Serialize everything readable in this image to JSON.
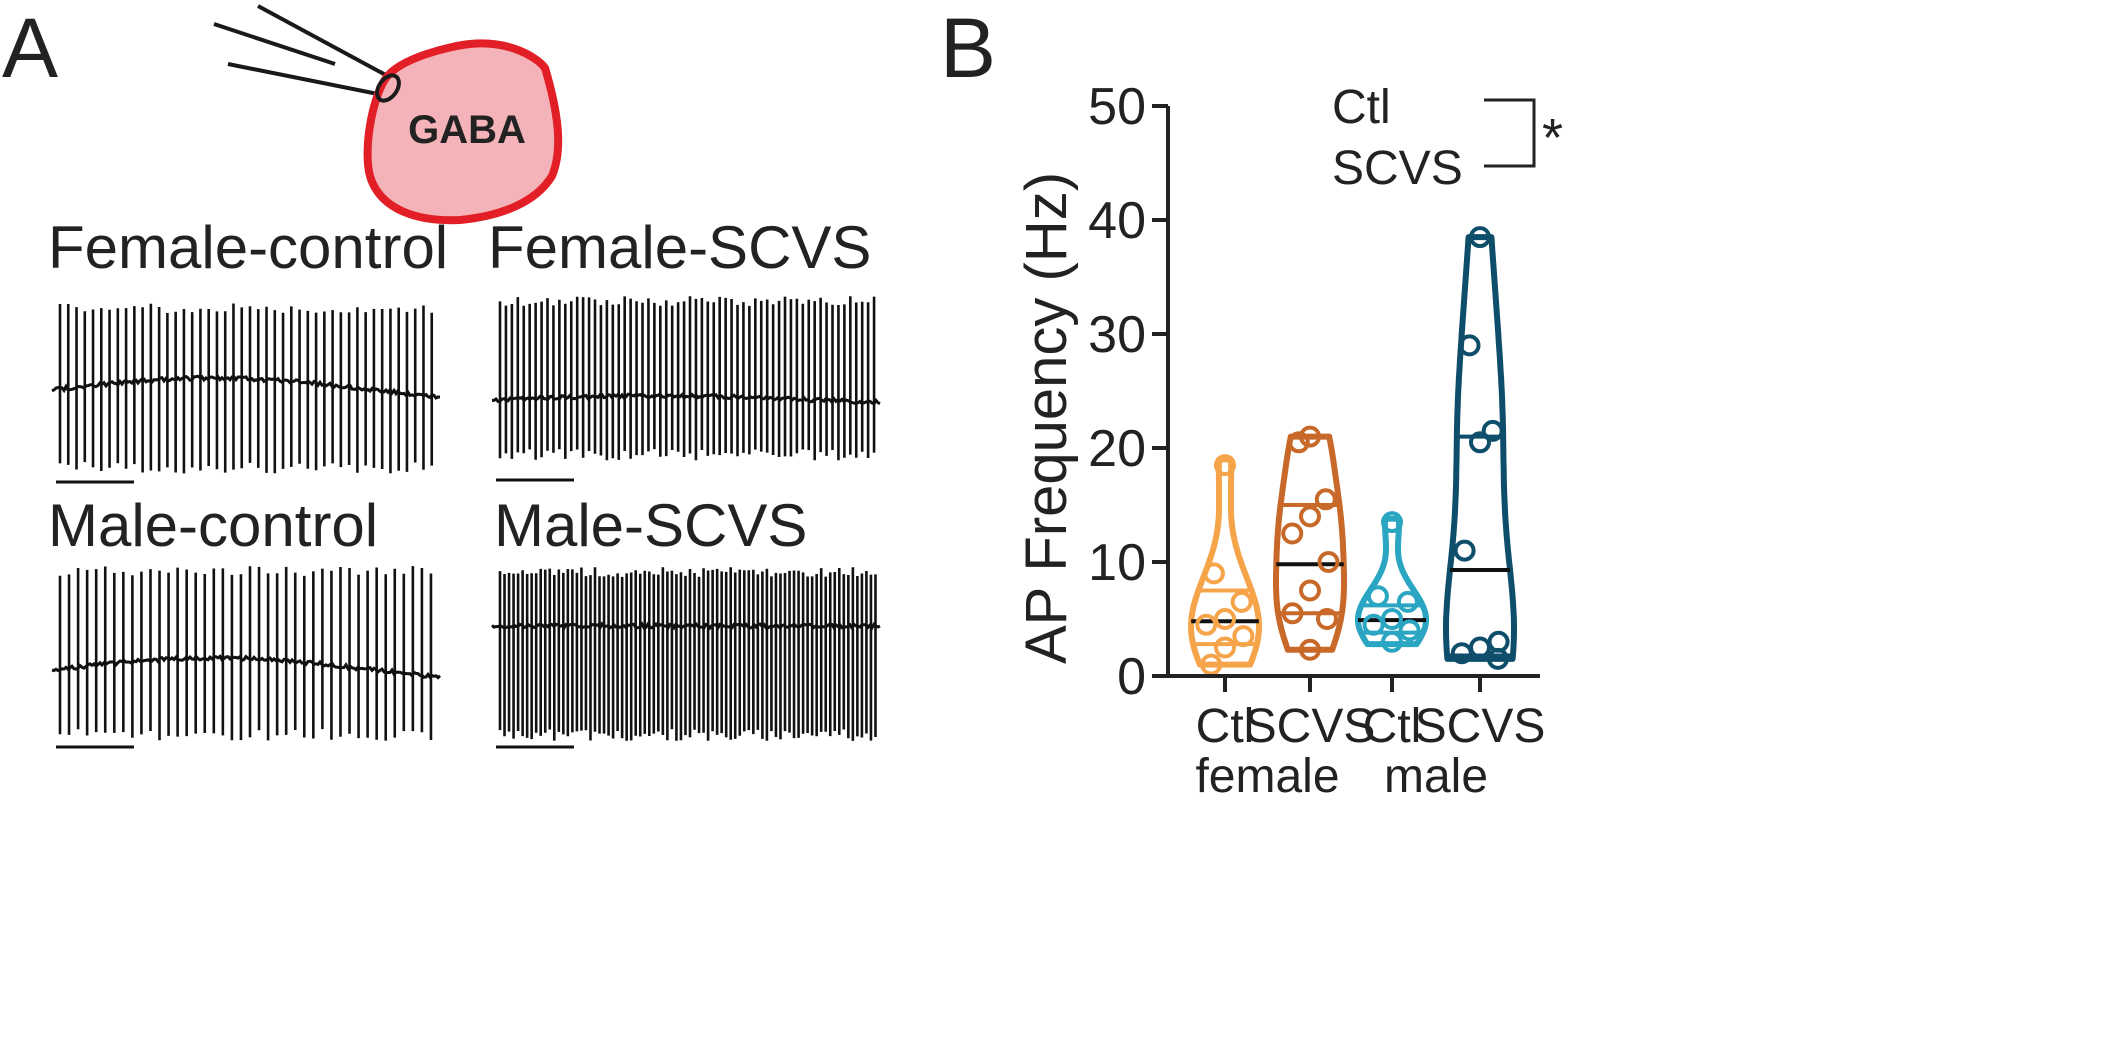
{
  "panels": {
    "a": "A",
    "b": "B"
  },
  "cell_label": "GABA",
  "traces": [
    {
      "label": "Female-control",
      "color": "#111111"
    },
    {
      "label": "Female-SCVS",
      "color": "#111111"
    },
    {
      "label": "Male-control",
      "color": "#111111"
    },
    {
      "label": "Male-SCVS",
      "color": "#111111"
    }
  ],
  "chart_data": {
    "type": "violin",
    "ylabel": "AP Frequency (Hz)",
    "ylim": [
      0,
      50
    ],
    "yticks": [
      "0",
      "10",
      "20",
      "30",
      "40",
      "50"
    ],
    "groups": [
      "female",
      "male"
    ],
    "categories": [
      "Ctl",
      "SCVS",
      "Ctl",
      "SCVS"
    ],
    "series": [
      {
        "group": "female",
        "condition": "Ctl",
        "color": "#F5A44A",
        "points": [
          18.5,
          9,
          6.5,
          5,
          4.5,
          3.5,
          2.5,
          1
        ],
        "median": 4.8,
        "q1": 2.8,
        "q3": 7.5,
        "min": 1,
        "max": 19
      },
      {
        "group": "female",
        "condition": "SCVS",
        "color": "#C8692A",
        "points": [
          21,
          20.5,
          15.5,
          14,
          12.5,
          10,
          7.5,
          5.5,
          5,
          2.3
        ],
        "median": 9.8,
        "q1": 5.5,
        "q3": 15,
        "min": 2.3,
        "max": 21
      },
      {
        "group": "male",
        "condition": "Ctl",
        "color": "#2BA6C2",
        "points": [
          13.5,
          7,
          6.5,
          5,
          4.5,
          4,
          3
        ],
        "median": 4.9,
        "q1": 3.8,
        "q3": 6.2,
        "min": 2.8,
        "max": 13.8
      },
      {
        "group": "male",
        "condition": "SCVS",
        "color": "#0E4E6A",
        "points": [
          38.5,
          29,
          21.5,
          20.5,
          11,
          3,
          2.5,
          2,
          1.5
        ],
        "median": 9.3,
        "q1": 1.8,
        "q3": 21,
        "min": 1.5,
        "max": 38.5
      }
    ],
    "legend": {
      "items": [
        "Ctl",
        "SCVS"
      ],
      "significance": "*"
    }
  }
}
